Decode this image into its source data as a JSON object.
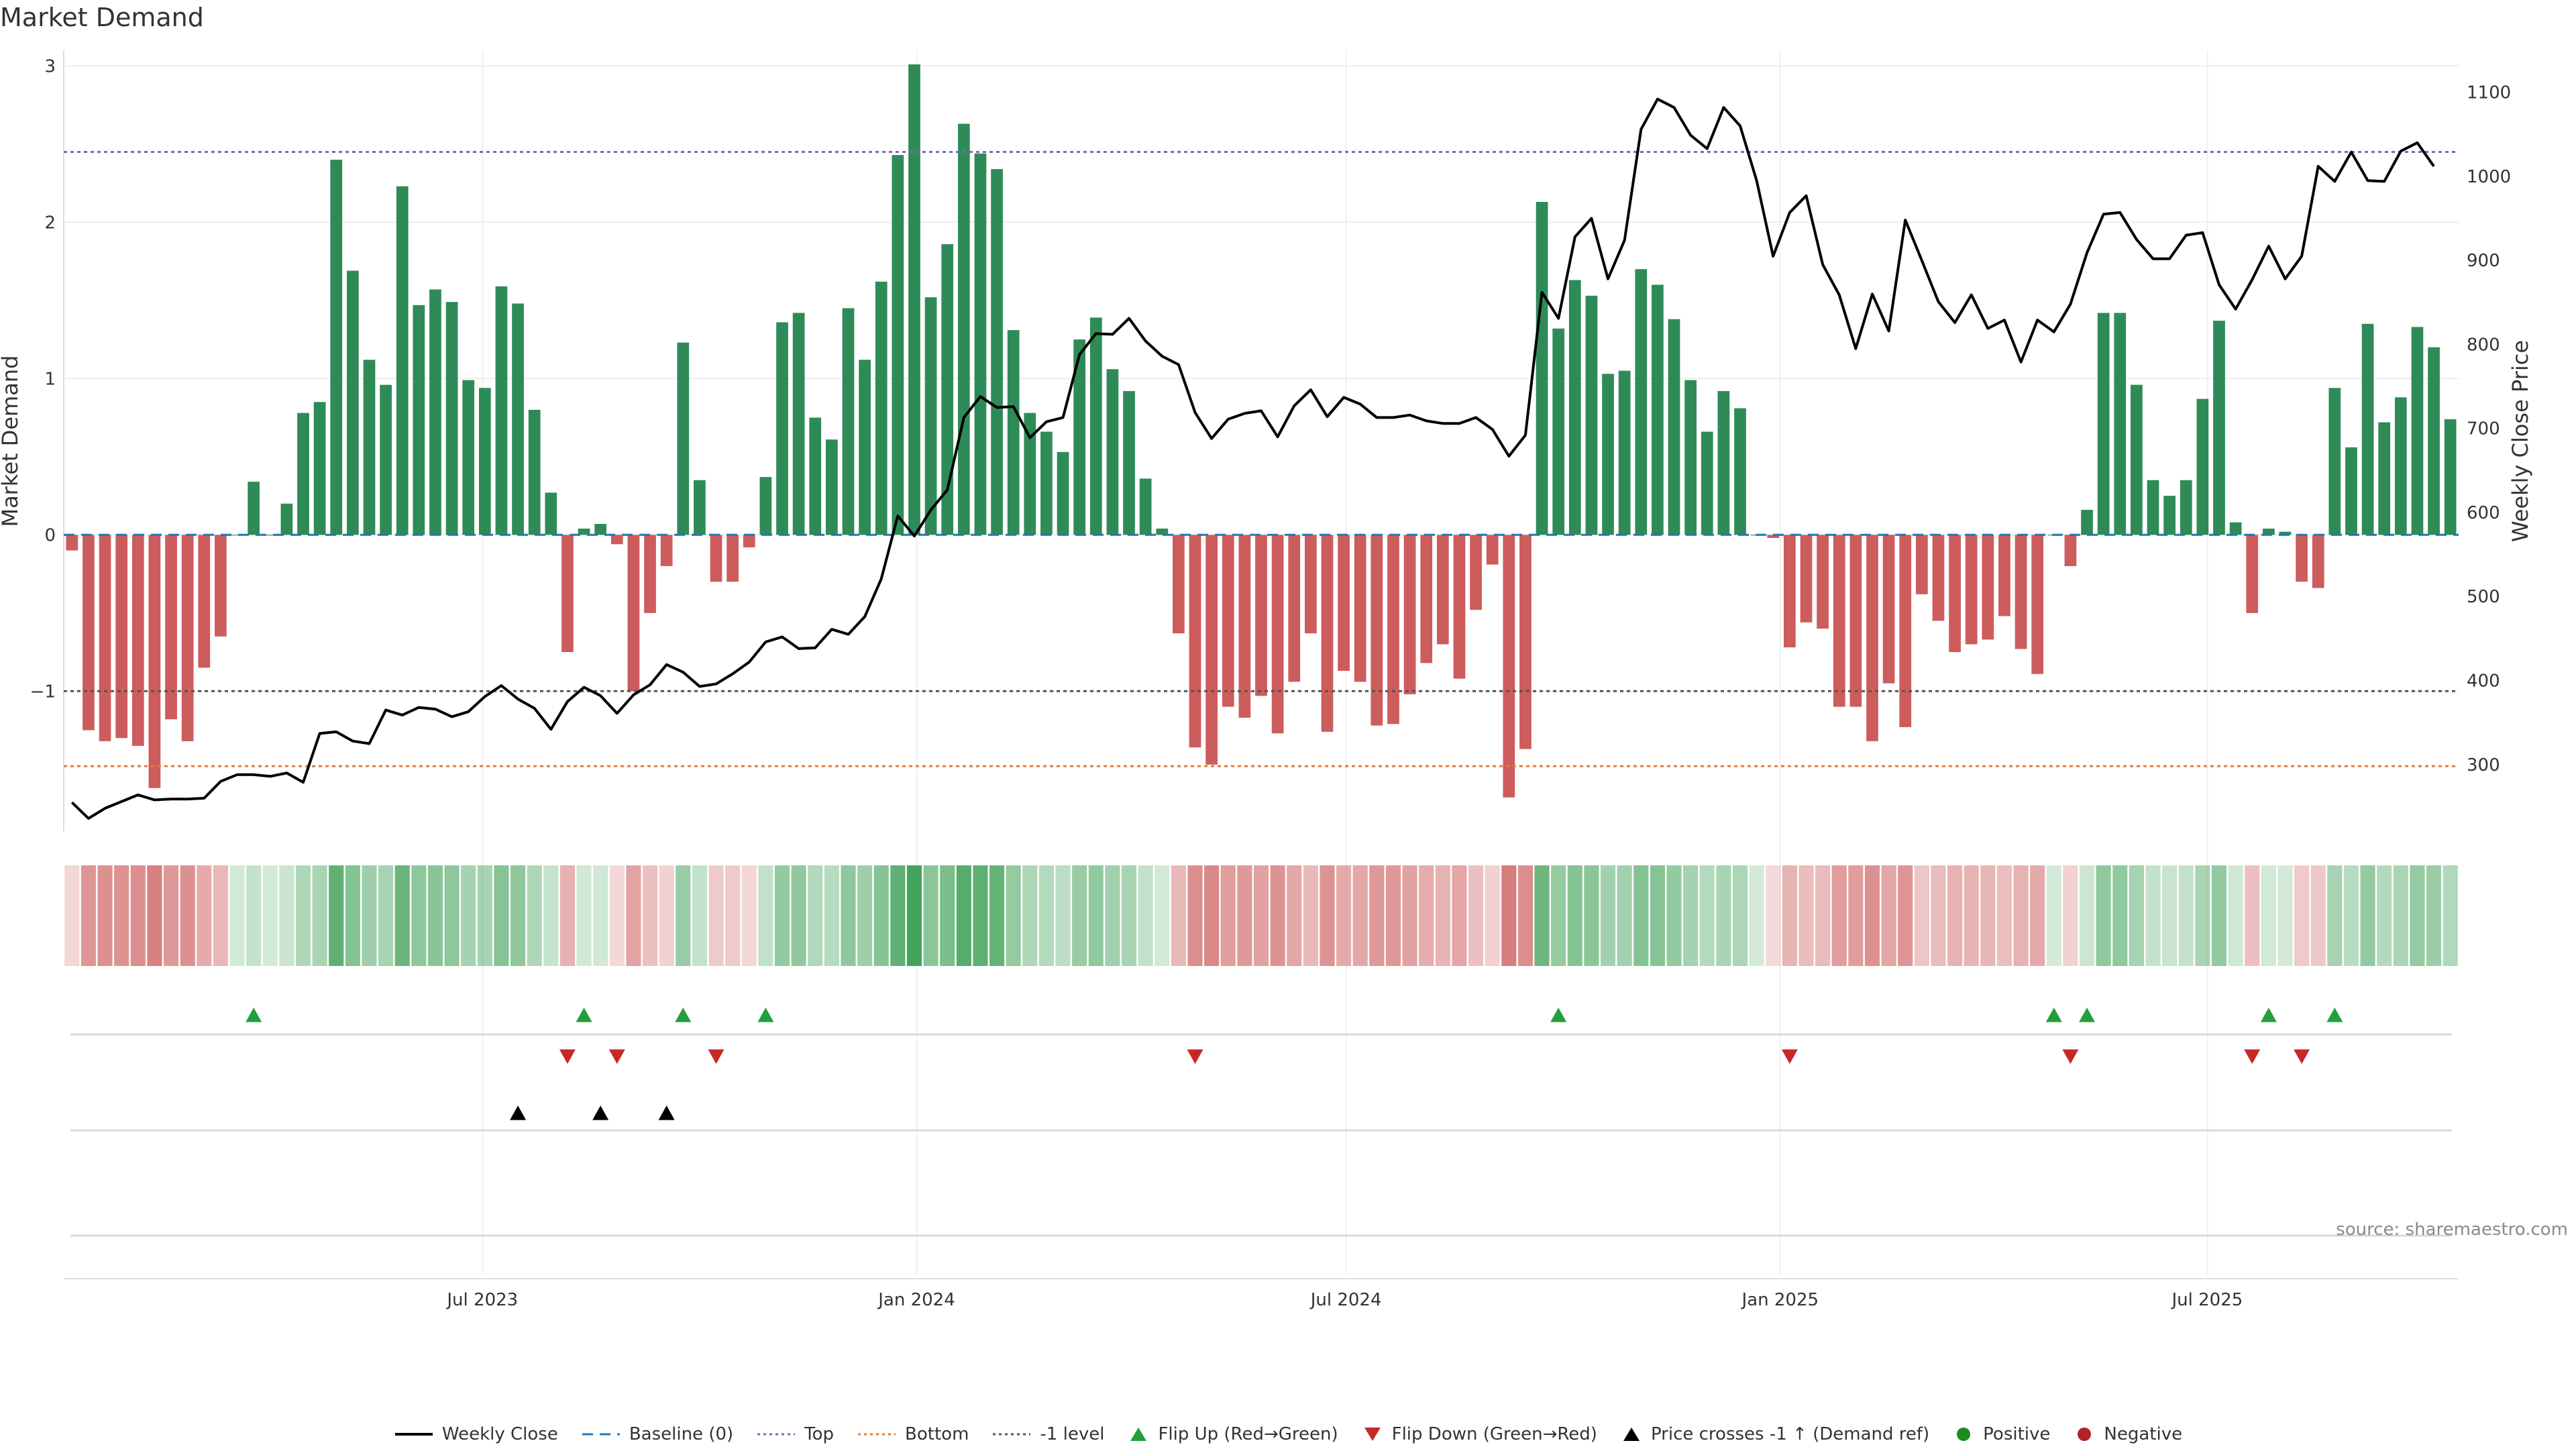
{
  "chart_data": {
    "type": "bar",
    "title": "Market Demand",
    "ylabel": "Market Demand",
    "y2label": "Weekly Close Price",
    "ylim": [
      -1.9,
      3.1
    ],
    "y2lim": [
      220,
      1150
    ],
    "yticks": [
      -1,
      0,
      1,
      2,
      3
    ],
    "yticklabels": [
      "−1",
      "0",
      "1",
      "2",
      "3"
    ],
    "y2ticks": [
      300,
      400,
      500,
      600,
      700,
      800,
      900,
      1000,
      1100
    ],
    "y2ticklabels": [
      "300",
      "400",
      "500",
      "600",
      "700",
      "800",
      "900",
      "1000",
      "1100"
    ],
    "x_start_label": "2023-01-08",
    "x_step_days": 7,
    "xticks": [
      "2023-07-01",
      "2024-01-01",
      "2024-07-01",
      "2025-01-01",
      "2025-07-01"
    ],
    "xticklabels": [
      "Jul 2023",
      "Jan 2024",
      "Jul 2024",
      "Jan 2025",
      "Jul 2025"
    ],
    "levels": {
      "top": 2.45,
      "bottom": -1.48,
      "minus_one": -1.0,
      "baseline": 0
    },
    "series": [
      {
        "name": "Market Demand",
        "values": [
          -0.1,
          -1.25,
          -1.32,
          -1.3,
          -1.35,
          -1.62,
          -1.18,
          -1.32,
          -0.85,
          -0.65,
          0.0,
          0.34,
          0.0,
          0.2,
          0.78,
          0.85,
          2.4,
          1.69,
          1.12,
          0.96,
          2.23,
          1.47,
          1.57,
          1.49,
          0.99,
          0.94,
          1.59,
          1.48,
          0.8,
          0.27,
          -0.75,
          0.04,
          0.07,
          -0.06,
          -1.0,
          -0.5,
          -0.2,
          1.23,
          0.35,
          -0.3,
          -0.3,
          -0.08,
          0.37,
          1.36,
          1.42,
          0.75,
          0.61,
          1.45,
          1.12,
          1.62,
          2.43,
          3.01,
          1.52,
          1.86,
          2.63,
          2.44,
          2.34,
          1.31,
          0.78,
          0.66,
          0.53,
          1.25,
          1.39,
          1.06,
          0.92,
          0.36,
          0.04,
          -0.63,
          -1.36,
          -1.47,
          -1.1,
          -1.17,
          -1.03,
          -1.27,
          -0.94,
          -0.63,
          -1.26,
          -0.87,
          -0.94,
          -1.22,
          -1.21,
          -1.02,
          -0.82,
          -0.7,
          -0.92,
          -0.48,
          -0.19,
          -1.68,
          -1.37,
          2.13,
          1.32,
          1.63,
          1.53,
          1.03,
          1.05,
          1.7,
          1.6,
          1.38,
          0.99,
          0.66,
          0.92,
          0.81,
          0.0,
          -0.02,
          -0.72,
          -0.56,
          -0.6,
          -1.1,
          -1.1,
          -1.32,
          -0.95,
          -1.23,
          -0.38,
          -0.55,
          -0.75,
          -0.7,
          -0.67,
          -0.52,
          -0.73,
          -0.89,
          0.0,
          -0.2,
          0.16,
          1.42,
          1.42,
          0.96,
          0.35,
          0.25,
          0.35,
          0.87,
          1.37,
          0.08,
          -0.5,
          0.04,
          0.02,
          -0.3,
          -0.34,
          0.94,
          0.56,
          1.35,
          0.72,
          0.88,
          1.33,
          1.2,
          0.74
        ]
      },
      {
        "name": "Weekly Close",
        "values": [
          255,
          236,
          248,
          256,
          264,
          258,
          259,
          259,
          260,
          280,
          288,
          288,
          286,
          290,
          279,
          337,
          339,
          328,
          325,
          365,
          359,
          368,
          366,
          357,
          363,
          381,
          394,
          378,
          367,
          342,
          375,
          392,
          382,
          361,
          383,
          395,
          419,
          410,
          393,
          396,
          408,
          422,
          446,
          452,
          438,
          439,
          461,
          455,
          476,
          521,
          596,
          572,
          603,
          627,
          713,
          738,
          725,
          726,
          689,
          708,
          713,
          788,
          813,
          812,
          831,
          804,
          786,
          776,
          719,
          688,
          711,
          718,
          721,
          690,
          727,
          746,
          714,
          737,
          729,
          713,
          713,
          716,
          709,
          706,
          706,
          713,
          699,
          667,
          692,
          862,
          831,
          928,
          950,
          878,
          924,
          1056,
          1092,
          1082,
          1049,
          1033,
          1082,
          1060,
          995,
          905,
          957,
          977,
          895,
          859,
          795,
          860,
          816,
          948,
          900,
          851,
          826,
          859,
          819,
          829,
          779,
          829,
          815,
          848,
          909,
          955,
          957,
          925,
          902,
          902,
          930,
          933,
          871,
          842,
          877,
          917,
          878,
          905,
          1012,
          994,
          1029,
          995,
          994,
          1030,
          1040,
          1012
        ],
        "color": "#000000"
      }
    ],
    "colors": {
      "positive": "#2e8b57",
      "negative": "#cd5c5c",
      "top": "#7b68b8",
      "bottom": "#e07b39",
      "minus_one": "#555555",
      "baseline": "#1f77b4",
      "flip_up": "#22a03c",
      "flip_down": "#c62828",
      "cross": "#000000"
    },
    "flip_up_weeks": [
      11,
      31,
      37,
      42,
      90,
      120,
      122,
      133,
      137
    ],
    "flip_down_weeks": [
      30,
      33,
      39,
      68,
      104,
      121,
      132,
      135
    ],
    "price_cross_weeks": [
      27,
      32,
      36
    ],
    "legend": [
      {
        "label": "Weekly Close",
        "symbol": "line",
        "color": "#000000"
      },
      {
        "label": "Baseline (0)",
        "symbol": "dash",
        "color": "#1f77b4"
      },
      {
        "label": "Top",
        "symbol": "dot",
        "color": "#7b68b8"
      },
      {
        "label": "Bottom",
        "symbol": "dot",
        "color": "#e07b39"
      },
      {
        "label": "-1 level",
        "symbol": "dot",
        "color": "#555555"
      },
      {
        "label": "Flip Up (Red→Green)",
        "symbol": "tri-up",
        "color": "#22a03c"
      },
      {
        "label": "Flip Down (Green→Red)",
        "symbol": "tri-down",
        "color": "#c62828"
      },
      {
        "label": "Price crosses -1 ↑ (Demand ref)",
        "symbol": "tri-up",
        "color": "#000000"
      },
      {
        "label": "Positive",
        "symbol": "circle",
        "color": "#1e8a1e"
      },
      {
        "label": "Negative",
        "symbol": "circle",
        "color": "#b22222"
      }
    ],
    "legend_placement": "bottom",
    "source": "source: sharemaestro.com"
  }
}
